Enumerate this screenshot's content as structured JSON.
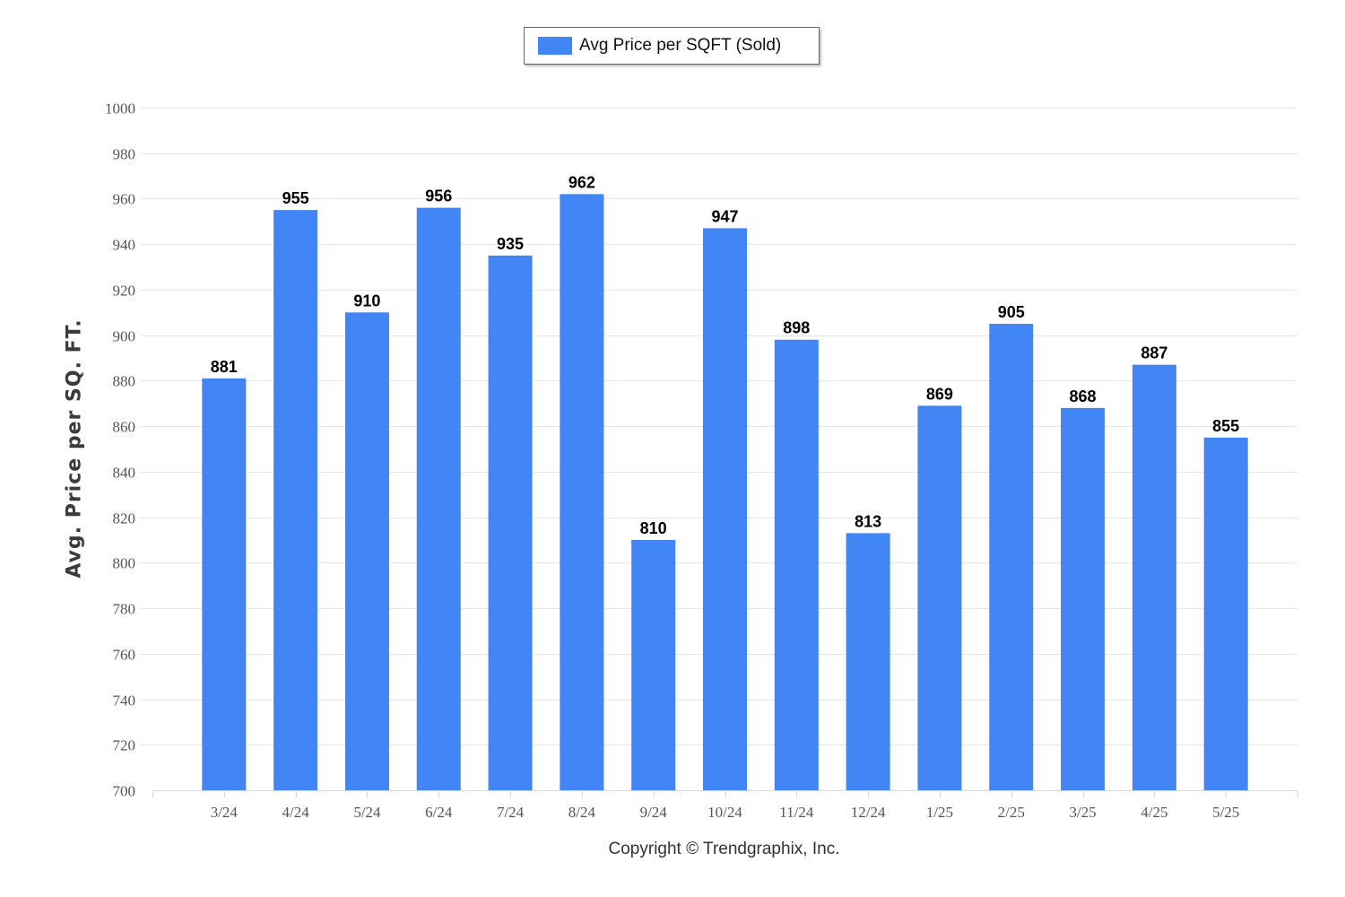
{
  "chart_data": {
    "type": "bar",
    "categories": [
      "3/24",
      "4/24",
      "5/24",
      "6/24",
      "7/24",
      "8/24",
      "9/24",
      "10/24",
      "11/24",
      "12/24",
      "1/25",
      "2/25",
      "3/25",
      "4/25",
      "5/25"
    ],
    "series": [
      {
        "name": "Avg Price per SQFT (Sold)",
        "values": [
          881,
          955,
          910,
          956,
          935,
          962,
          810,
          947,
          898,
          813,
          869,
          905,
          868,
          887,
          855
        ],
        "color": "#4285f4"
      }
    ],
    "ylabel": "Avg. Price per SQ. FT.",
    "ylim": [
      700,
      1000
    ],
    "yticks": [
      700,
      720,
      740,
      760,
      780,
      800,
      820,
      840,
      860,
      880,
      900,
      920,
      940,
      960,
      980,
      1000
    ],
    "grid": true,
    "legend_position": "top-center",
    "data_labels": true
  },
  "legend": {
    "label": "Avg Price per SQFT (Sold)",
    "color": "#4285f4"
  },
  "footer": {
    "copyright": "Copyright © Trendgraphix, Inc."
  }
}
